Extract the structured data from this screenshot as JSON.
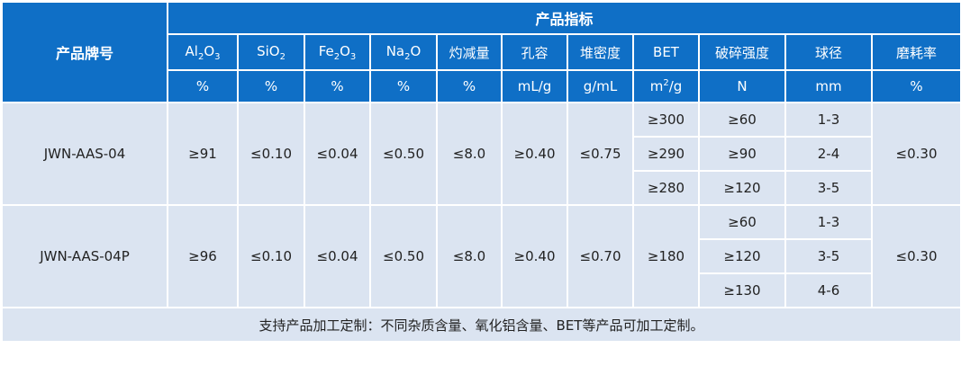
{
  "header": {
    "row_label": "产品牌号",
    "group": "产品指标",
    "columns": [
      {
        "name": [
          "Al",
          "2",
          "O",
          "3"
        ],
        "unit": [
          "%"
        ]
      },
      {
        "name": [
          "SiO",
          "2"
        ],
        "unit": [
          "%"
        ]
      },
      {
        "name": [
          "Fe",
          "2",
          "O",
          "3"
        ],
        "unit": [
          "%"
        ]
      },
      {
        "name": [
          "Na",
          "2",
          "O"
        ],
        "unit": [
          "%"
        ]
      },
      {
        "name": [
          "灼减量"
        ],
        "unit": [
          "%"
        ]
      },
      {
        "name": [
          "孔容"
        ],
        "unit": [
          "mL/g"
        ]
      },
      {
        "name": [
          "堆密度"
        ],
        "unit": [
          "g/mL"
        ]
      },
      {
        "name": [
          "BET"
        ],
        "unit": [
          "m",
          "2",
          "/g"
        ]
      },
      {
        "name": [
          "破碎强度"
        ],
        "unit": [
          "N"
        ]
      },
      {
        "name": [
          "球径"
        ],
        "unit": [
          "mm"
        ]
      },
      {
        "name": [
          "磨耗率"
        ],
        "unit": [
          "%"
        ]
      }
    ]
  },
  "rows": [
    {
      "product": "JWN-AAS-04",
      "values": [
        "≥91",
        "≤0.10",
        "≤0.04",
        "≤0.50",
        "≤8.0",
        "≥0.40",
        "≤0.75"
      ],
      "bet": [
        "≥300",
        "≥290",
        "≥280"
      ],
      "strength": [
        "≥60",
        "≥90",
        "≥120"
      ],
      "diameter": [
        "1-3",
        "2-4",
        "3-5"
      ],
      "wear": "≤0.30"
    },
    {
      "product": "JWN-AAS-04P",
      "values": [
        "≥96",
        "≤0.10",
        "≤0.04",
        "≤0.50",
        "≤8.0",
        "≥0.40",
        "≤0.70"
      ],
      "bet": [
        "≥180"
      ],
      "strength": [
        "≥60",
        "≥120",
        "≥130"
      ],
      "diameter": [
        "1-3",
        "3-5",
        "4-6"
      ],
      "wear": "≤0.30"
    }
  ],
  "footer": "支持产品加工定制：不同杂质含量、氧化铝含量、BET等产品可加工定制。"
}
